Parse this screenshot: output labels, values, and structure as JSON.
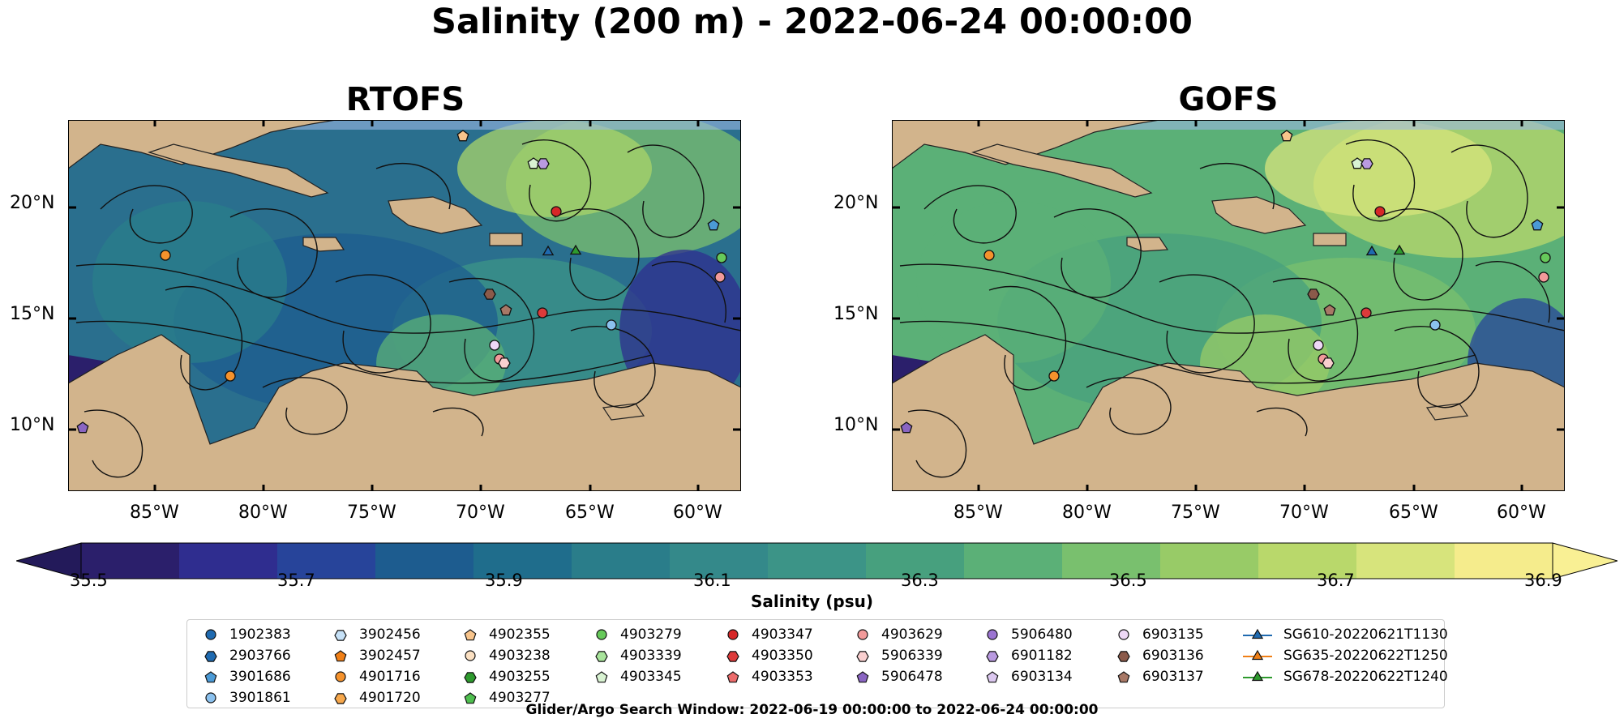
{
  "title": "Salinity (200 m) - 2022-06-24 00:00:00",
  "panels": [
    {
      "title": "RTOFS"
    },
    {
      "title": "GOFS"
    }
  ],
  "axes": {
    "lat_ticks": [
      "20°N",
      "15°N",
      "10°N"
    ],
    "lon_ticks": [
      "85°W",
      "80°W",
      "75°W",
      "70°W",
      "65°W",
      "60°W"
    ]
  },
  "colorbar": {
    "label": "Salinity (psu)",
    "ticks": [
      "35.5",
      "35.7",
      "35.9",
      "36.1",
      "36.3",
      "36.5",
      "36.7",
      "36.9"
    ],
    "colors": [
      "#2b1f6b",
      "#2f2d8f",
      "#27449a",
      "#1d5c8f",
      "#1f6d8c",
      "#2a7d8a",
      "#34898a",
      "#3c9487",
      "#47a07e",
      "#5bb077",
      "#79c06e",
      "#98cb67",
      "#b9d86b",
      "#d7e47c",
      "#f5ec8c"
    ]
  },
  "legend": {
    "items": [
      {
        "label": "1902383",
        "marker": "circle",
        "color": "#1f6ab0"
      },
      {
        "label": "2903766",
        "marker": "hexagon",
        "color": "#1f6ab0"
      },
      {
        "label": "3901686",
        "marker": "pentagon",
        "color": "#4b9ad6"
      },
      {
        "label": "3901861",
        "marker": "circle",
        "color": "#8bc1ee"
      },
      {
        "label": "3902456",
        "marker": "hexagon",
        "color": "#c6e1f7"
      },
      {
        "label": "3902457",
        "marker": "pentagon",
        "color": "#f07f16"
      },
      {
        "label": "4901716",
        "marker": "circle",
        "color": "#f5922c"
      },
      {
        "label": "4901720",
        "marker": "hexagon",
        "color": "#f7a84c"
      },
      {
        "label": "4902355",
        "marker": "pentagon",
        "color": "#f8c48b"
      },
      {
        "label": "4903238",
        "marker": "circle",
        "color": "#fbe0c2"
      },
      {
        "label": "4903255",
        "marker": "hexagon",
        "color": "#2e9a2e"
      },
      {
        "label": "4903277",
        "marker": "pentagon",
        "color": "#4fbf4f"
      },
      {
        "label": "4903279",
        "marker": "circle",
        "color": "#66c95a"
      },
      {
        "label": "4903339",
        "marker": "hexagon",
        "color": "#a8e49b"
      },
      {
        "label": "4903345",
        "marker": "pentagon",
        "color": "#d9f3d2"
      },
      {
        "label": "4903347",
        "marker": "circle",
        "color": "#d62728"
      },
      {
        "label": "4903350",
        "marker": "hexagon",
        "color": "#dd3a3a"
      },
      {
        "label": "4903353",
        "marker": "pentagon",
        "color": "#ec6b6b"
      },
      {
        "label": "4903629",
        "marker": "circle",
        "color": "#f29a9a"
      },
      {
        "label": "5906339",
        "marker": "hexagon",
        "color": "#f9cfcf"
      },
      {
        "label": "5906478",
        "marker": "pentagon",
        "color": "#8a65c2"
      },
      {
        "label": "5906480",
        "marker": "circle",
        "color": "#9b74d1"
      },
      {
        "label": "6901182",
        "marker": "hexagon",
        "color": "#b99ae0"
      },
      {
        "label": "6903134",
        "marker": "pentagon",
        "color": "#dcc8f0"
      },
      {
        "label": "6903135",
        "marker": "circle",
        "color": "#eed8f6"
      },
      {
        "label": "6903136",
        "marker": "hexagon",
        "color": "#8b5a4a"
      },
      {
        "label": "6903137",
        "marker": "pentagon",
        "color": "#a87866"
      },
      {
        "label": "SG610-20220621T1130",
        "marker": "triangle-line",
        "color": "#1f6ab0"
      },
      {
        "label": "SG635-20220622T1250",
        "marker": "triangle-line",
        "color": "#f07f16"
      },
      {
        "label": "SG678-20220622T1240",
        "marker": "triangle-line",
        "color": "#2e9a2e"
      }
    ]
  },
  "footer": "Glider/Argo Search Window: 2022-06-19 00:00:00 to 2022-06-24 00:00:00"
}
